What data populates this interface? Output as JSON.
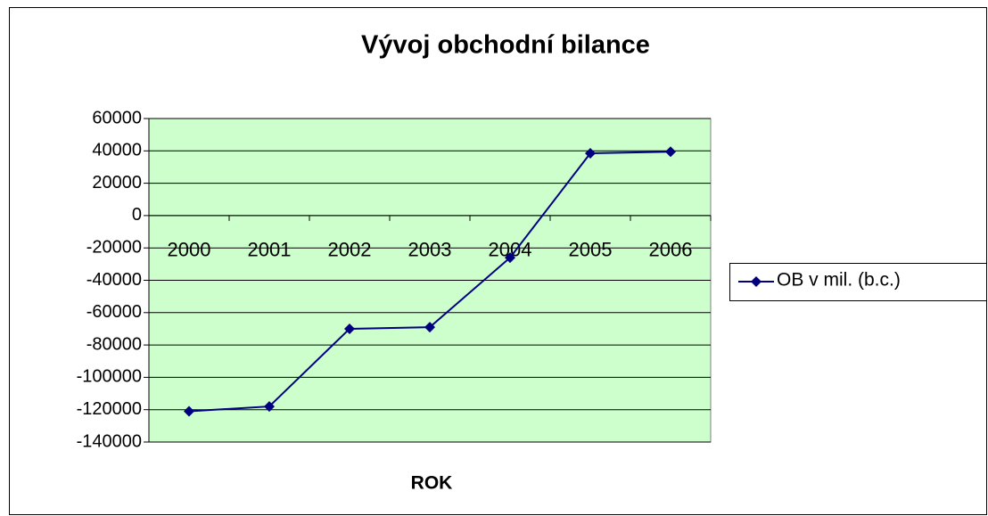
{
  "chart_data": {
    "type": "line",
    "title": "Vývoj obchodní bilance",
    "x_label": "ROK",
    "categories": [
      "2000",
      "2001",
      "2002",
      "2003",
      "2004",
      "2005",
      "2006"
    ],
    "series": [
      {
        "name": "OB v mil. (b.c.)",
        "color": "#000080",
        "values": [
          -121000,
          -118000,
          -70000,
          -69000,
          -26000,
          38500,
          39500
        ]
      }
    ],
    "ylim": [
      -140000,
      60000
    ],
    "yticks": [
      -140000,
      -120000,
      -100000,
      -80000,
      -60000,
      -40000,
      -20000,
      0,
      20000,
      40000,
      60000
    ],
    "grid": true,
    "plot_background": "#ccffcc",
    "legend": "right"
  }
}
